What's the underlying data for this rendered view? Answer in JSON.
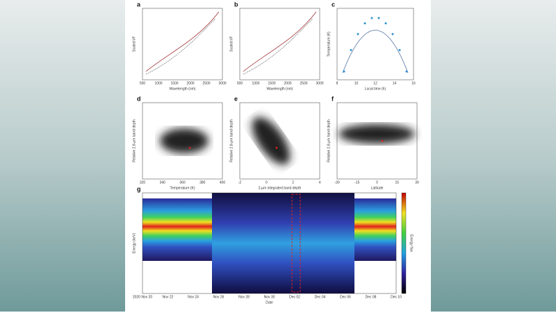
{
  "panels": [
    {
      "letter": "a",
      "x_label": "Wavelength (nm)",
      "y_label": "Scaled I/F",
      "x_ticks": [
        "500",
        "1000",
        "1500",
        "2000",
        "2500",
        "3000"
      ]
    },
    {
      "letter": "b",
      "x_label": "Wavelength (nm)",
      "y_label": "Scaled I/F",
      "x_ticks": [
        "500",
        "1000",
        "1500",
        "2000",
        "2500",
        "3000"
      ]
    },
    {
      "letter": "c",
      "x_label": "Local time (h)",
      "y_label": "Temperature (K)",
      "x_ticks": [
        "8",
        "10",
        "12",
        "14",
        "16"
      ]
    },
    {
      "letter": "d",
      "x_label": "Temperature (K)",
      "y_label": "Relative 2.8-μm band depth",
      "x_ticks": [
        "320",
        "340",
        "360",
        "380",
        "400"
      ]
    },
    {
      "letter": "e",
      "x_label": "2-μm integrated band depth",
      "y_label": "Relative 2.8-μm band depth",
      "x_ticks": [
        "-2",
        "0",
        "2",
        "4"
      ]
    },
    {
      "letter": "f",
      "x_label": "Latitude",
      "y_label": "Relative 2.8-μm band depth",
      "x_ticks": [
        "-30",
        "-15",
        "0",
        "15",
        "30"
      ]
    },
    {
      "letter": "g",
      "x_label": "Date",
      "y_label": "Energy (keV)",
      "x_ticks": [
        "2020 Nov 20",
        "Nov 22",
        "Nov 24",
        "Nov 26",
        "Nov 28",
        "Nov 30",
        "Dec 02",
        "Dec 04",
        "Dec 06",
        "Dec 08",
        "Dec 10"
      ],
      "colorbar_label": "Energy flux"
    }
  ]
}
